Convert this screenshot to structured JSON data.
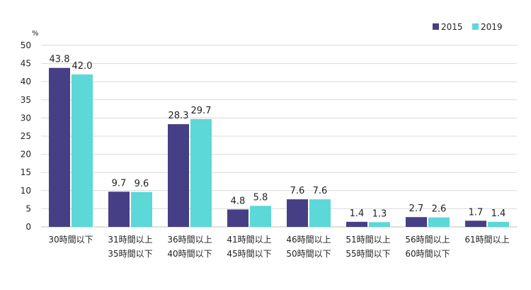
{
  "chart_data": {
    "type": "bar",
    "unit_label": "%",
    "ylim": [
      0,
      50
    ],
    "yticks": [
      0,
      5,
      10,
      15,
      20,
      25,
      30,
      35,
      40,
      45,
      50
    ],
    "grid": true,
    "legend_position": "top-right",
    "categories": [
      [
        "30時間以下"
      ],
      [
        "31時間以上",
        "35時間以下"
      ],
      [
        "36時間以上",
        "40時間以下"
      ],
      [
        "41時間以上",
        "45時間以下"
      ],
      [
        "46時間以上",
        "50時間以下"
      ],
      [
        "51時間以上",
        "55時間以下"
      ],
      [
        "56時間以上",
        "60時間以下"
      ],
      [
        "61時間以上"
      ]
    ],
    "series": [
      {
        "name": "2015",
        "color": "#473f86",
        "values": [
          43.8,
          9.7,
          28.3,
          4.8,
          7.6,
          1.4,
          2.7,
          1.7
        ],
        "labels": [
          "43.8",
          "9.7",
          "28.3",
          "4.8",
          "7.6",
          "1.4",
          "2.7",
          "1.7"
        ]
      },
      {
        "name": "2019",
        "color": "#5cd8d8",
        "values": [
          42.0,
          9.6,
          29.7,
          5.8,
          7.6,
          1.3,
          2.6,
          1.4
        ],
        "labels": [
          "42.0",
          "9.6",
          "29.7",
          "5.8",
          "7.6",
          "1.3",
          "2.6",
          "1.4"
        ]
      }
    ]
  }
}
